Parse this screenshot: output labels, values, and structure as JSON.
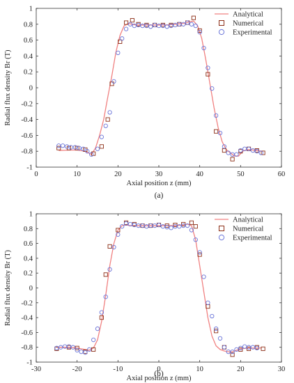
{
  "colors": {
    "analytical": "#f08080",
    "numerical": "#8b2c14",
    "experimental": "#6a74d8"
  },
  "chart_data": [
    {
      "type": "line",
      "panel_label": "(a)",
      "xlabel": "Axial position z (mm)",
      "ylabel": "Radial flux density Br (T)",
      "xlim": [
        0,
        60
      ],
      "ylim": [
        -1,
        1
      ],
      "xticks": [
        "0",
        "10",
        "20",
        "30",
        "40",
        "50",
        "60"
      ],
      "yticks": [
        "-1",
        "-0.8",
        "-0.6",
        "-0.4",
        "-0.2",
        "0",
        "0.2",
        "0.4",
        "0.6",
        "0.8",
        "1"
      ],
      "grid": false,
      "legend_position": "top-right",
      "legend": [
        "Analytical",
        "Numerical",
        "Experimental"
      ],
      "series": [
        {
          "name": "Analytical",
          "style": "line",
          "x": [
            5.5,
            8,
            10,
            12,
            13.5,
            14.5,
            15.5,
            16.5,
            17.5,
            18.5,
            19.5,
            20.5,
            21.5,
            22.5,
            23.5,
            24.5,
            26,
            28,
            30,
            32,
            34,
            36,
            37.5,
            38.5,
            39.5,
            40.5,
            41.5,
            42.5,
            43.5,
            44.5,
            45.5,
            46.5,
            47.5,
            48.5,
            49.5,
            50.5,
            51.5,
            52.5,
            53.5,
            54.5,
            55.5
          ],
          "y": [
            -0.79,
            -0.785,
            -0.785,
            -0.8,
            -0.84,
            -0.76,
            -0.6,
            -0.4,
            -0.12,
            0.15,
            0.45,
            0.66,
            0.78,
            0.81,
            0.8,
            0.79,
            0.79,
            0.79,
            0.79,
            0.79,
            0.8,
            0.81,
            0.83,
            0.84,
            0.78,
            0.62,
            0.35,
            0.05,
            -0.25,
            -0.5,
            -0.68,
            -0.78,
            -0.82,
            -0.86,
            -0.86,
            -0.8,
            -0.78,
            -0.78,
            -0.79,
            -0.795,
            -0.8
          ]
        },
        {
          "name": "Numerical",
          "style": "square",
          "x": [
            5.5,
            8,
            10,
            12,
            14,
            16,
            17.5,
            18.5,
            20.5,
            22,
            23.5,
            25,
            27,
            29,
            31,
            33,
            35,
            37,
            38.5,
            40,
            42,
            44,
            46,
            48,
            50,
            52,
            54,
            55.5
          ],
          "y": [
            -0.76,
            -0.76,
            -0.76,
            -0.78,
            -0.83,
            -0.74,
            -0.4,
            0.05,
            0.58,
            0.82,
            0.85,
            0.8,
            0.79,
            0.79,
            0.79,
            0.79,
            0.8,
            0.82,
            0.88,
            0.72,
            0.17,
            -0.55,
            -0.79,
            -0.9,
            -0.8,
            -0.77,
            -0.79,
            -0.82
          ]
        },
        {
          "name": "Experimental",
          "style": "circle",
          "x": [
            5.5,
            6.5,
            7.5,
            8.5,
            9.5,
            10.5,
            11.5,
            12.5,
            13.5,
            15,
            16,
            17,
            18,
            19,
            20,
            21,
            22,
            23,
            24,
            25,
            26,
            27,
            28,
            29,
            30,
            31,
            32,
            33,
            34,
            35,
            36,
            37,
            38,
            39,
            40,
            41,
            42,
            43,
            44,
            45,
            46,
            47,
            48,
            49,
            50,
            51,
            52,
            53,
            54,
            55
          ],
          "y": [
            -0.73,
            -0.73,
            -0.74,
            -0.75,
            -0.75,
            -0.76,
            -0.77,
            -0.8,
            -0.84,
            -0.77,
            -0.62,
            -0.48,
            -0.31,
            0.08,
            0.44,
            0.62,
            0.74,
            0.8,
            0.78,
            0.79,
            0.78,
            0.78,
            0.77,
            0.79,
            0.78,
            0.78,
            0.77,
            0.78,
            0.79,
            0.8,
            0.8,
            0.82,
            0.8,
            0.78,
            0.7,
            0.5,
            0.25,
            -0.01,
            -0.35,
            -0.57,
            -0.74,
            -0.82,
            -0.84,
            -0.84,
            -0.79,
            -0.77,
            -0.77,
            -0.79,
            -0.8,
            -0.82
          ]
        }
      ]
    },
    {
      "type": "line",
      "panel_label": "(b)",
      "xlabel": "Axial position z (mm)",
      "ylabel": "Radial flux density Br (T)",
      "xlim": [
        -30,
        30
      ],
      "ylim": [
        -1,
        1
      ],
      "xticks": [
        "-30",
        "-20",
        "-10",
        "0",
        "10",
        "20",
        "30"
      ],
      "yticks": [
        "-1",
        "-0.8",
        "-0.6",
        "-0.4",
        "-0.2",
        "0",
        "0.2",
        "0.4",
        "0.6",
        "0.8",
        "1"
      ],
      "grid": false,
      "legend_position": "top-right",
      "legend": [
        "Analytical",
        "Numerical",
        "Experimental"
      ],
      "series": [
        {
          "name": "Analytical",
          "style": "line",
          "x": [
            -25,
            -22,
            -20,
            -19,
            -18,
            -17,
            -16,
            -15,
            -14,
            -13,
            -12,
            -11,
            -10,
            -9,
            -8,
            -7,
            -6,
            -4,
            -2,
            0,
            2,
            4,
            6,
            7,
            8,
            9,
            10,
            11,
            12,
            13,
            14,
            15,
            16,
            17,
            18,
            19,
            20,
            22,
            25
          ],
          "y": [
            -0.8,
            -0.8,
            -0.81,
            -0.82,
            -0.83,
            -0.84,
            -0.81,
            -0.7,
            -0.45,
            -0.1,
            0.3,
            0.6,
            0.78,
            0.84,
            0.85,
            0.84,
            0.84,
            0.84,
            0.84,
            0.84,
            0.84,
            0.84,
            0.85,
            0.86,
            0.84,
            0.65,
            0.3,
            -0.05,
            -0.4,
            -0.65,
            -0.78,
            -0.83,
            -0.85,
            -0.86,
            -0.86,
            -0.84,
            -0.82,
            -0.81,
            -0.81
          ]
        },
        {
          "name": "Numerical",
          "style": "square",
          "x": [
            -25,
            -22,
            -20,
            -18,
            -16,
            -14,
            -13,
            -12,
            -10,
            -8,
            -6,
            -4,
            -2,
            0,
            2,
            4,
            6,
            8,
            9,
            10,
            12,
            14,
            16,
            18,
            20,
            22,
            24,
            25.5
          ],
          "y": [
            -0.82,
            -0.8,
            -0.81,
            -0.86,
            -0.83,
            -0.4,
            0.18,
            0.56,
            0.78,
            0.88,
            0.86,
            0.84,
            0.84,
            0.85,
            0.84,
            0.85,
            0.86,
            0.88,
            0.83,
            0.45,
            -0.25,
            -0.58,
            -0.8,
            -0.9,
            -0.83,
            -0.82,
            -0.8,
            -0.82
          ]
        },
        {
          "name": "Experimental",
          "style": "circle",
          "x": [
            -25,
            -24,
            -23,
            -22,
            -21,
            -20,
            -19,
            -18,
            -17,
            -16,
            -15,
            -14,
            -13,
            -12,
            -11,
            -10,
            -9,
            -8,
            -7,
            -6,
            -5,
            -4,
            -3,
            -2,
            -1,
            0,
            1,
            2,
            3,
            4,
            5,
            6,
            7,
            8,
            9,
            10,
            11,
            12,
            13,
            14,
            15,
            16,
            17,
            18,
            19,
            20,
            21,
            22,
            23,
            24
          ],
          "y": [
            -0.81,
            -0.8,
            -0.79,
            -0.79,
            -0.8,
            -0.84,
            -0.86,
            -0.87,
            -0.83,
            -0.7,
            -0.55,
            -0.33,
            -0.12,
            0.25,
            0.55,
            0.72,
            0.83,
            0.87,
            0.86,
            0.85,
            0.84,
            0.84,
            0.83,
            0.84,
            0.84,
            0.85,
            0.83,
            0.82,
            0.81,
            0.83,
            0.83,
            0.84,
            0.84,
            0.78,
            0.65,
            0.48,
            0.15,
            -0.2,
            -0.38,
            -0.55,
            -0.68,
            -0.8,
            -0.86,
            -0.86,
            -0.83,
            -0.81,
            -0.79,
            -0.8,
            -0.8,
            -0.81
          ]
        }
      ]
    }
  ]
}
